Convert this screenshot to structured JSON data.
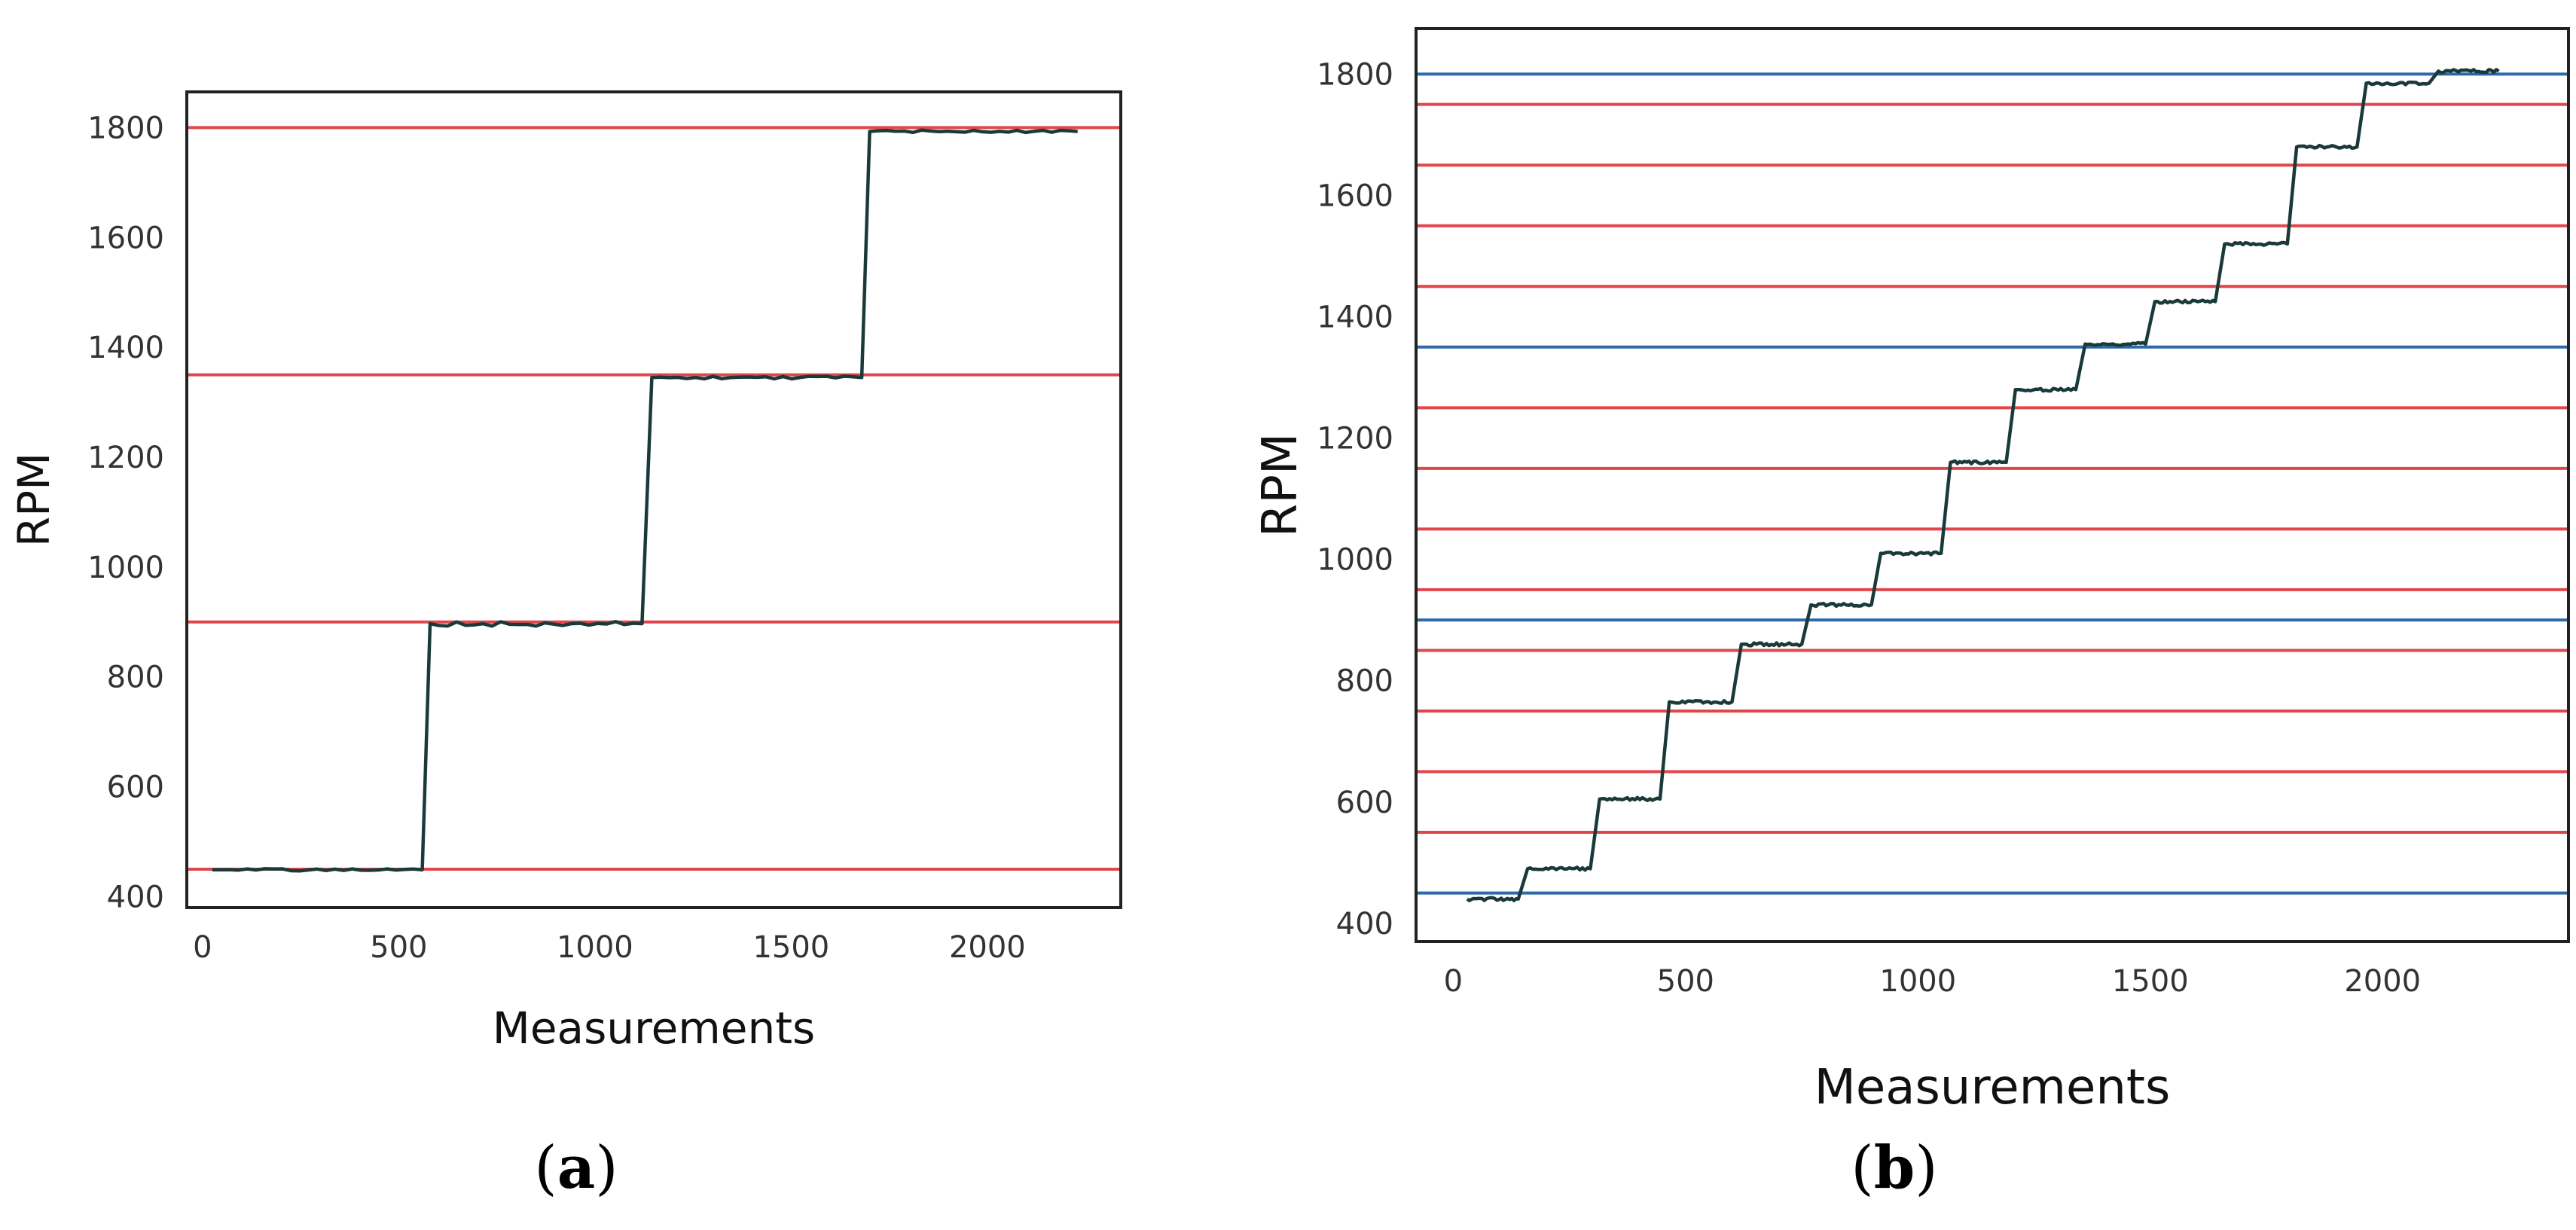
{
  "colors": {
    "step_line": "#1a3a3a",
    "red_line": "#e0474c",
    "blue_line": "#2e6aa8",
    "axis": "#222222",
    "tick_text": "#333333"
  },
  "chart_data": [
    {
      "id": "a",
      "type": "line",
      "panel_label": "a",
      "xlabel": "Measurements",
      "ylabel": "RPM",
      "xlim": [
        -40,
        2340
      ],
      "ylim": [
        380,
        1865
      ],
      "xticks": [
        0,
        500,
        1000,
        1500,
        2000
      ],
      "yticks": [
        400,
        600,
        800,
        1000,
        1200,
        1400,
        1600,
        1800
      ],
      "hlines": [
        {
          "y": 450,
          "color": "red"
        },
        {
          "y": 900,
          "color": "red"
        },
        {
          "y": 1350,
          "color": "red"
        },
        {
          "y": 1800,
          "color": "red"
        }
      ],
      "series": [
        {
          "name": "RPM",
          "levels": [
            {
              "x_start": 25,
              "x_end": 560,
              "value": 449
            },
            {
              "x_start": 580,
              "x_end": 1120,
              "value": 897
            },
            {
              "x_start": 1145,
              "x_end": 1680,
              "value": 1345
            },
            {
              "x_start": 1700,
              "x_end": 2230,
              "value": 1793
            }
          ]
        }
      ]
    },
    {
      "id": "b",
      "type": "line",
      "panel_label": "b",
      "xlabel": "Measurements",
      "ylabel": "RPM",
      "xlim": [
        -80,
        2400
      ],
      "ylim": [
        370,
        1875
      ],
      "xticks": [
        0,
        500,
        1000,
        1500,
        2000
      ],
      "yticks": [
        400,
        600,
        800,
        1000,
        1200,
        1400,
        1600,
        1800
      ],
      "hlines": [
        {
          "y": 450,
          "color": "blue"
        },
        {
          "y": 550,
          "color": "red"
        },
        {
          "y": 650,
          "color": "red"
        },
        {
          "y": 750,
          "color": "red"
        },
        {
          "y": 850,
          "color": "red"
        },
        {
          "y": 900,
          "color": "blue"
        },
        {
          "y": 950,
          "color": "red"
        },
        {
          "y": 1050,
          "color": "red"
        },
        {
          "y": 1150,
          "color": "red"
        },
        {
          "y": 1250,
          "color": "red"
        },
        {
          "y": 1350,
          "color": "blue"
        },
        {
          "y": 1450,
          "color": "red"
        },
        {
          "y": 1550,
          "color": "red"
        },
        {
          "y": 1650,
          "color": "red"
        },
        {
          "y": 1750,
          "color": "red"
        },
        {
          "y": 1800,
          "color": "blue"
        }
      ],
      "series": [
        {
          "name": "RPM",
          "levels": [
            {
              "x_start": 30,
              "x_end": 140,
              "value": 440
            },
            {
              "x_start": 160,
              "x_end": 295,
              "value": 490
            },
            {
              "x_start": 315,
              "x_end": 445,
              "value": 605
            },
            {
              "x_start": 465,
              "x_end": 600,
              "value": 765
            },
            {
              "x_start": 620,
              "x_end": 750,
              "value": 860
            },
            {
              "x_start": 770,
              "x_end": 900,
              "value": 925
            },
            {
              "x_start": 920,
              "x_end": 1050,
              "value": 1010
            },
            {
              "x_start": 1070,
              "x_end": 1190,
              "value": 1160
            },
            {
              "x_start": 1210,
              "x_end": 1340,
              "value": 1280
            },
            {
              "x_start": 1360,
              "x_end": 1490,
              "value": 1355
            },
            {
              "x_start": 1510,
              "x_end": 1640,
              "value": 1425
            },
            {
              "x_start": 1660,
              "x_end": 1795,
              "value": 1520
            },
            {
              "x_start": 1815,
              "x_end": 1945,
              "value": 1680
            },
            {
              "x_start": 1965,
              "x_end": 2100,
              "value": 1785
            },
            {
              "x_start": 2120,
              "x_end": 2250,
              "value": 1805
            }
          ]
        }
      ]
    }
  ]
}
